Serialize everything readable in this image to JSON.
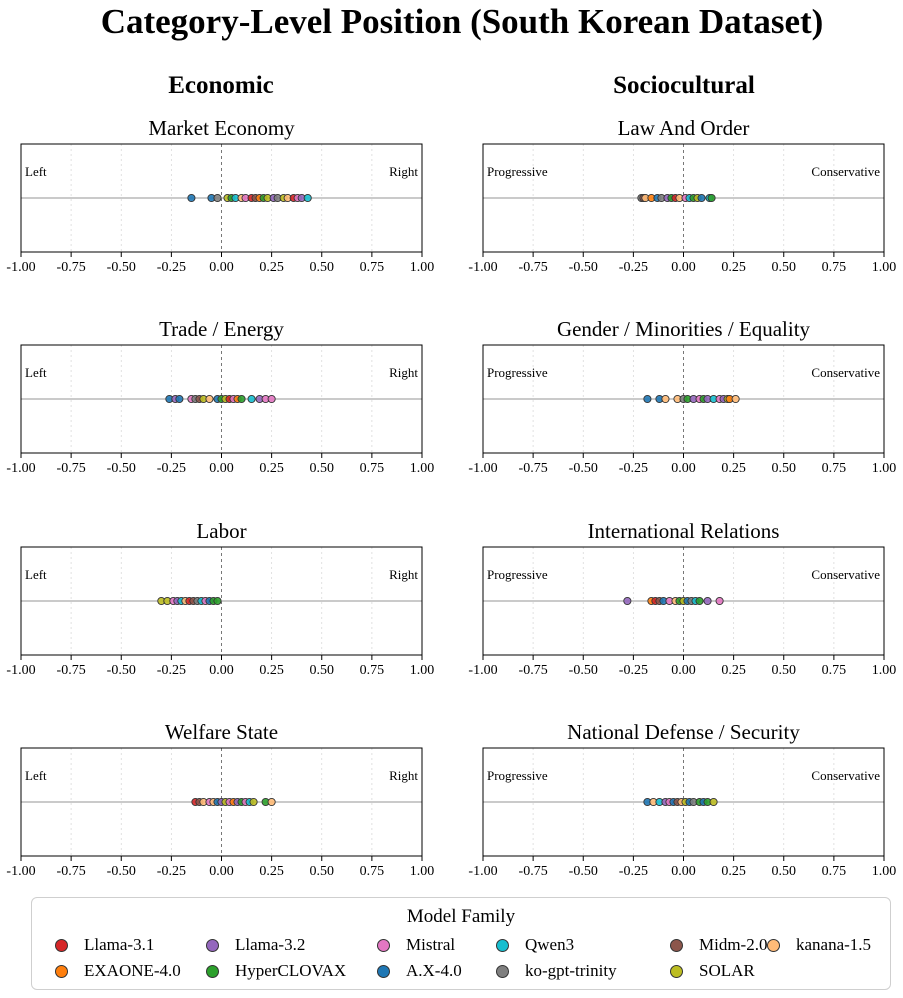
{
  "figure_title": "Category-Level Position (South Korean Dataset)",
  "columns": [
    "Economic",
    "Sociocultural"
  ],
  "axis": {
    "xlim": [
      -1,
      1
    ],
    "ticks": [
      -1,
      -0.75,
      -0.5,
      -0.25,
      0,
      0.25,
      0.5,
      0.75,
      1
    ],
    "tick_labels": [
      "-1.00",
      "-0.75",
      "-0.50",
      "-0.25",
      "0.00",
      "0.25",
      "0.50",
      "0.75",
      "1.00"
    ]
  },
  "legend": {
    "title": "Model Family",
    "items": [
      {
        "name": "Llama-3.1",
        "color": "#d62728"
      },
      {
        "name": "Llama-3.2",
        "color": "#9467bd"
      },
      {
        "name": "Mistral",
        "color": "#e377c2"
      },
      {
        "name": "Qwen3",
        "color": "#17becf"
      },
      {
        "name": "Midm-2.0",
        "color": "#8c564b"
      },
      {
        "name": "kanana-1.5",
        "color": "#ffbb78"
      },
      {
        "name": "EXAONE-4.0",
        "color": "#ff7f0e"
      },
      {
        "name": "HyperCLOVAX",
        "color": "#2ca02c"
      },
      {
        "name": "A.X-4.0",
        "color": "#1f77b4"
      },
      {
        "name": "ko-gpt-trinity",
        "color": "#7f7f7f"
      },
      {
        "name": "SOLAR",
        "color": "#bcbd22"
      }
    ]
  },
  "chart_data": [
    {
      "type": "scatter",
      "column": "Economic",
      "title": "Market Economy",
      "left_label": "Left",
      "right_label": "Right",
      "xlim": [
        -1,
        1
      ],
      "grid": true,
      "points": [
        {
          "model": "A.X-4.0",
          "x": -0.15
        },
        {
          "model": "A.X-4.0",
          "x": -0.05
        },
        {
          "model": "ko-gpt-trinity",
          "x": -0.02
        },
        {
          "model": "SOLAR",
          "x": 0.03
        },
        {
          "model": "HyperCLOVAX",
          "x": 0.05
        },
        {
          "model": "Qwen3",
          "x": 0.07
        },
        {
          "model": "kanana-1.5",
          "x": 0.1
        },
        {
          "model": "Mistral",
          "x": 0.12
        },
        {
          "model": "Llama-3.1",
          "x": 0.15
        },
        {
          "model": "Midm-2.0",
          "x": 0.17
        },
        {
          "model": "EXAONE-4.0",
          "x": 0.19
        },
        {
          "model": "HyperCLOVAX",
          "x": 0.21
        },
        {
          "model": "SOLAR",
          "x": 0.23
        },
        {
          "model": "Llama-3.2",
          "x": 0.26
        },
        {
          "model": "ko-gpt-trinity",
          "x": 0.28
        },
        {
          "model": "SOLAR",
          "x": 0.31
        },
        {
          "model": "kanana-1.5",
          "x": 0.33
        },
        {
          "model": "Llama-3.1",
          "x": 0.36
        },
        {
          "model": "Mistral",
          "x": 0.38
        },
        {
          "model": "Llama-3.2",
          "x": 0.4
        },
        {
          "model": "Qwen3",
          "x": 0.43
        }
      ]
    },
    {
      "type": "scatter",
      "column": "Sociocultural",
      "title": "Law And Order",
      "left_label": "Progressive",
      "right_label": "Conservative",
      "xlim": [
        -1,
        1
      ],
      "grid": true,
      "points": [
        {
          "model": "ko-gpt-trinity",
          "x": -0.21
        },
        {
          "model": "Midm-2.0",
          "x": -0.2
        },
        {
          "model": "kanana-1.5",
          "x": -0.19
        },
        {
          "model": "EXAONE-4.0",
          "x": -0.16
        },
        {
          "model": "A.X-4.0",
          "x": -0.13
        },
        {
          "model": "ko-gpt-trinity",
          "x": -0.11
        },
        {
          "model": "Llama-3.2",
          "x": -0.08
        },
        {
          "model": "HyperCLOVAX",
          "x": -0.06
        },
        {
          "model": "Llama-3.1",
          "x": -0.04
        },
        {
          "model": "kanana-1.5",
          "x": -0.02
        },
        {
          "model": "Mistral",
          "x": 0.01
        },
        {
          "model": "Qwen3",
          "x": 0.03
        },
        {
          "model": "HyperCLOVAX",
          "x": 0.05
        },
        {
          "model": "SOLAR",
          "x": 0.07
        },
        {
          "model": "A.X-4.0",
          "x": 0.09
        },
        {
          "model": "Qwen3",
          "x": 0.13
        },
        {
          "model": "HyperCLOVAX",
          "x": 0.14
        }
      ]
    },
    {
      "type": "scatter",
      "column": "Economic",
      "title": "Trade / Energy",
      "left_label": "Left",
      "right_label": "Right",
      "xlim": [
        -1,
        1
      ],
      "grid": true,
      "points": [
        {
          "model": "A.X-4.0",
          "x": -0.26
        },
        {
          "model": "Llama-3.2",
          "x": -0.23
        },
        {
          "model": "A.X-4.0",
          "x": -0.21
        },
        {
          "model": "Mistral",
          "x": -0.15
        },
        {
          "model": "ko-gpt-trinity",
          "x": -0.13
        },
        {
          "model": "Midm-2.0",
          "x": -0.11
        },
        {
          "model": "SOLAR",
          "x": -0.09
        },
        {
          "model": "kanana-1.5",
          "x": -0.06
        },
        {
          "model": "A.X-4.0",
          "x": -0.02
        },
        {
          "model": "HyperCLOVAX",
          "x": 0
        },
        {
          "model": "SOLAR",
          "x": 0.02
        },
        {
          "model": "Llama-3.1",
          "x": 0.04
        },
        {
          "model": "Mistral",
          "x": 0.06
        },
        {
          "model": "EXAONE-4.0",
          "x": 0.08
        },
        {
          "model": "HyperCLOVAX",
          "x": 0.1
        },
        {
          "model": "Qwen3",
          "x": 0.15
        },
        {
          "model": "Llama-3.2",
          "x": 0.19
        },
        {
          "model": "Mistral",
          "x": 0.22
        },
        {
          "model": "Mistral",
          "x": 0.25
        }
      ]
    },
    {
      "type": "scatter",
      "column": "Sociocultural",
      "title": "Gender / Minorities / Equality",
      "left_label": "Progressive",
      "right_label": "Conservative",
      "xlim": [
        -1,
        1
      ],
      "grid": true,
      "points": [
        {
          "model": "A.X-4.0",
          "x": -0.18
        },
        {
          "model": "A.X-4.0",
          "x": -0.12
        },
        {
          "model": "kanana-1.5",
          "x": -0.09
        },
        {
          "model": "kanana-1.5",
          "x": -0.03
        },
        {
          "model": "ko-gpt-trinity",
          "x": 0
        },
        {
          "model": "HyperCLOVAX",
          "x": 0.02
        },
        {
          "model": "Llama-3.2",
          "x": 0.05
        },
        {
          "model": "Mistral",
          "x": 0.08
        },
        {
          "model": "HyperCLOVAX",
          "x": 0.1
        },
        {
          "model": "Llama-3.2",
          "x": 0.12
        },
        {
          "model": "Qwen3",
          "x": 0.15
        },
        {
          "model": "Mistral",
          "x": 0.18
        },
        {
          "model": "Llama-3.2",
          "x": 0.2
        },
        {
          "model": "SOLAR",
          "x": 0.22
        },
        {
          "model": "EXAONE-4.0",
          "x": 0.23
        },
        {
          "model": "kanana-1.5",
          "x": 0.26
        }
      ]
    },
    {
      "type": "scatter",
      "column": "Economic",
      "title": "Labor",
      "left_label": "Left",
      "right_label": "Right",
      "xlim": [
        -1,
        1
      ],
      "grid": true,
      "points": [
        {
          "model": "SOLAR",
          "x": -0.3
        },
        {
          "model": "SOLAR",
          "x": -0.27
        },
        {
          "model": "Mistral",
          "x": -0.24
        },
        {
          "model": "Llama-3.2",
          "x": -0.22
        },
        {
          "model": "Qwen3",
          "x": -0.2
        },
        {
          "model": "kanana-1.5",
          "x": -0.18
        },
        {
          "model": "Llama-3.1",
          "x": -0.16
        },
        {
          "model": "Midm-2.0",
          "x": -0.14
        },
        {
          "model": "ko-gpt-trinity",
          "x": -0.12
        },
        {
          "model": "Qwen3",
          "x": -0.1
        },
        {
          "model": "Mistral",
          "x": -0.08
        },
        {
          "model": "A.X-4.0",
          "x": -0.06
        },
        {
          "model": "HyperCLOVAX",
          "x": -0.04
        },
        {
          "model": "HyperCLOVAX",
          "x": -0.02
        }
      ]
    },
    {
      "type": "scatter",
      "column": "Sociocultural",
      "title": "International Relations",
      "left_label": "Progressive",
      "right_label": "Conservative",
      "xlim": [
        -1,
        1
      ],
      "grid": true,
      "points": [
        {
          "model": "Llama-3.2",
          "x": -0.28
        },
        {
          "model": "EXAONE-4.0",
          "x": -0.16
        },
        {
          "model": "Llama-3.1",
          "x": -0.14
        },
        {
          "model": "Midm-2.0",
          "x": -0.12
        },
        {
          "model": "A.X-4.0",
          "x": -0.1
        },
        {
          "model": "Mistral",
          "x": -0.07
        },
        {
          "model": "kanana-1.5",
          "x": -0.04
        },
        {
          "model": "HyperCLOVAX",
          "x": -0.02
        },
        {
          "model": "SOLAR",
          "x": 0
        },
        {
          "model": "A.X-4.0",
          "x": 0.02
        },
        {
          "model": "ko-gpt-trinity",
          "x": 0.04
        },
        {
          "model": "Qwen3",
          "x": 0.06
        },
        {
          "model": "HyperCLOVAX",
          "x": 0.08
        },
        {
          "model": "Llama-3.2",
          "x": 0.12
        },
        {
          "model": "Mistral",
          "x": 0.18
        }
      ]
    },
    {
      "type": "scatter",
      "column": "Economic",
      "title": "Welfare State",
      "left_label": "Left",
      "right_label": "Right",
      "xlim": [
        -1,
        1
      ],
      "grid": true,
      "points": [
        {
          "model": "Llama-3.1",
          "x": -0.13
        },
        {
          "model": "Midm-2.0",
          "x": -0.11
        },
        {
          "model": "kanana-1.5",
          "x": -0.09
        },
        {
          "model": "Mistral",
          "x": -0.06
        },
        {
          "model": "kanana-1.5",
          "x": -0.04
        },
        {
          "model": "A.X-4.0",
          "x": -0.02
        },
        {
          "model": "Llama-3.2",
          "x": 0
        },
        {
          "model": "SOLAR",
          "x": 0.02
        },
        {
          "model": "Mistral",
          "x": 0.04
        },
        {
          "model": "EXAONE-4.0",
          "x": 0.06
        },
        {
          "model": "Llama-3.2",
          "x": 0.08
        },
        {
          "model": "HyperCLOVAX",
          "x": 0.1
        },
        {
          "model": "Mistral",
          "x": 0.12
        },
        {
          "model": "Qwen3",
          "x": 0.14
        },
        {
          "model": "SOLAR",
          "x": 0.16
        },
        {
          "model": "HyperCLOVAX",
          "x": 0.22
        },
        {
          "model": "kanana-1.5",
          "x": 0.25
        }
      ]
    },
    {
      "type": "scatter",
      "column": "Sociocultural",
      "title": "National Defense / Security",
      "left_label": "Progressive",
      "right_label": "Conservative",
      "xlim": [
        -1,
        1
      ],
      "grid": true,
      "points": [
        {
          "model": "A.X-4.0",
          "x": -0.18
        },
        {
          "model": "kanana-1.5",
          "x": -0.15
        },
        {
          "model": "Qwen3",
          "x": -0.12
        },
        {
          "model": "Llama-3.2",
          "x": -0.09
        },
        {
          "model": "Mistral",
          "x": -0.07
        },
        {
          "model": "A.X-4.0",
          "x": -0.05
        },
        {
          "model": "Midm-2.0",
          "x": -0.03
        },
        {
          "model": "kanana-1.5",
          "x": -0.01
        },
        {
          "model": "SOLAR",
          "x": 0.01
        },
        {
          "model": "A.X-4.0",
          "x": 0.03
        },
        {
          "model": "ko-gpt-trinity",
          "x": 0.05
        },
        {
          "model": "HyperCLOVAX",
          "x": 0.08
        },
        {
          "model": "A.X-4.0",
          "x": 0.1
        },
        {
          "model": "HyperCLOVAX",
          "x": 0.12
        },
        {
          "model": "SOLAR",
          "x": 0.15
        }
      ]
    }
  ]
}
